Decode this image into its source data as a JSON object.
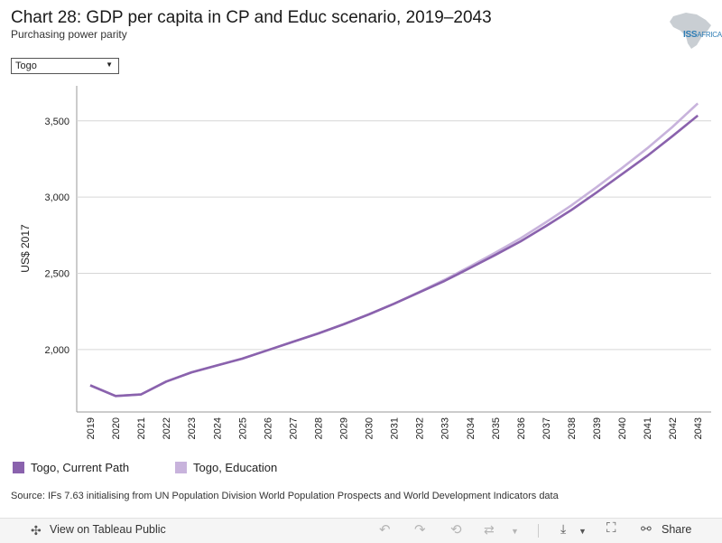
{
  "header": {
    "title": "Chart 28: GDP per capita in CP and Educ scenario, 2019–2043",
    "subtitle": "Purchasing power parity",
    "logo_text": "ISS",
    "logo_suffix": "AFRICA"
  },
  "filter": {
    "selected": "Togo"
  },
  "chart_data": {
    "type": "line",
    "title": "Chart 28: GDP per capita in CP and Educ scenario, 2019–2043",
    "subtitle": "Purchasing power parity",
    "xlabel": "",
    "ylabel": "US$ 2017",
    "ylim": [
      1590,
      3730
    ],
    "yticks": [
      2000,
      2500,
      3000,
      3500
    ],
    "ytick_labels": [
      "2,000",
      "2,500",
      "3,000",
      "3,500"
    ],
    "grid": true,
    "categories": [
      "2019",
      "2020",
      "2021",
      "2022",
      "2023",
      "2024",
      "2025",
      "2026",
      "2027",
      "2028",
      "2029",
      "2030",
      "2031",
      "2032",
      "2033",
      "2034",
      "2035",
      "2036",
      "2037",
      "2038",
      "2039",
      "2040",
      "2041",
      "2042",
      "2043"
    ],
    "series": [
      {
        "name": "Togo, Current Path",
        "color": "#8a62ad",
        "values": [
          1765,
          1695,
          1705,
          1790,
          1850,
          1895,
          1940,
          1995,
          2050,
          2105,
          2165,
          2230,
          2300,
          2375,
          2450,
          2535,
          2620,
          2710,
          2810,
          2915,
          3030,
          3150,
          3270,
          3400,
          3535
        ]
      },
      {
        "name": "Togo, Education",
        "color": "#c8b3dc",
        "values": [
          1765,
          1695,
          1705,
          1790,
          1850,
          1895,
          1940,
          1995,
          2050,
          2105,
          2165,
          2230,
          2300,
          2378,
          2458,
          2545,
          2635,
          2730,
          2835,
          2945,
          3065,
          3190,
          3320,
          3460,
          3615
        ]
      }
    ]
  },
  "legend": [
    {
      "label": "Togo, Current Path",
      "color": "#8a62ad"
    },
    {
      "label": "Togo, Education",
      "color": "#c8b3dc"
    }
  ],
  "source": "Source: IFs 7.63 initialising from UN Population Division World Population Prospects and World Development Indicators data",
  "toolbar": {
    "view_label": "View on Tableau Public",
    "share_label": "Share"
  }
}
